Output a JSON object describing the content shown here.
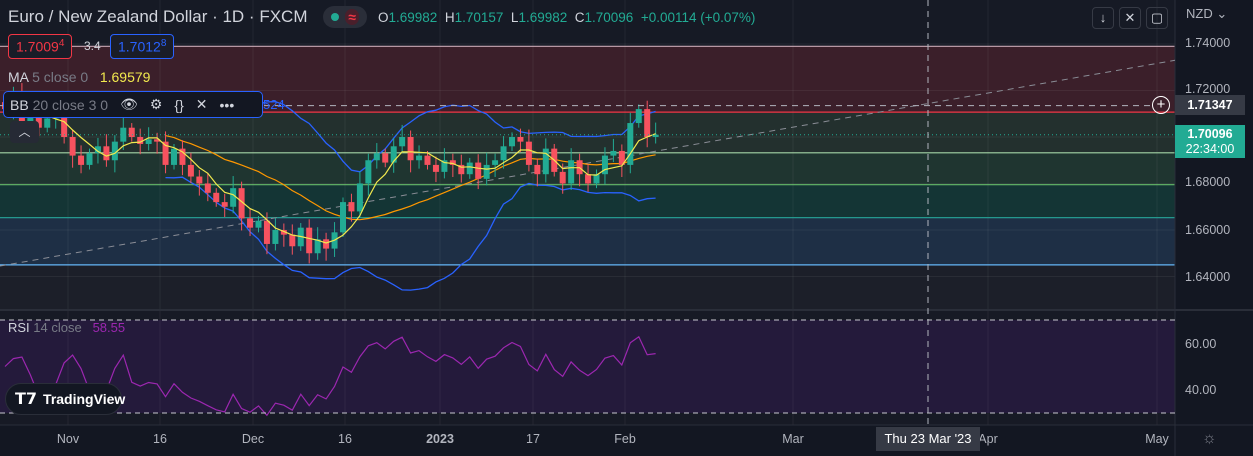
{
  "header": {
    "title": "Euro / New Zealand Dollar · 1D · FXCM",
    "o_label": "O",
    "o": "1.69982",
    "h_label": "H",
    "h": "1.70157",
    "l_label": "L",
    "l": "1.69982",
    "c_label": "C",
    "c": "1.70096",
    "change": "+0.00114 (+0.07%)"
  },
  "trade": {
    "sell_main": "1.7009",
    "sell_pip": "4",
    "spread": "3.4",
    "buy_main": "1.7012",
    "buy_pip": "8"
  },
  "indicators": {
    "ma": {
      "label": "MA",
      "params": "5 close 0",
      "value": "1.69579"
    },
    "bb": {
      "label": "BB",
      "params": "20 close 3 0",
      "value_partial": "524"
    },
    "rsi": {
      "label": "RSI",
      "params": "14 close",
      "value": "58.55"
    }
  },
  "price_axis": {
    "currency": "NZD",
    "ticks": [
      "1.74000",
      "1.72000",
      "1.68000",
      "1.66000",
      "1.64000"
    ],
    "crosshair": "1.71347",
    "last_price": "1.70096",
    "countdown": "22:34:00",
    "rsi_ticks": [
      "60.00",
      "40.00"
    ]
  },
  "time_axis": {
    "labels": [
      "Nov",
      "16",
      "Dec",
      "16",
      "2023",
      "17",
      "Feb",
      "Mar",
      "Apr",
      "May"
    ],
    "crosshair": "Thu 23 Mar '23"
  },
  "logo": "TradingView",
  "colors": {
    "up": "#22ab94",
    "down": "#f7525f",
    "ma": "#f2e94e",
    "basis": "#ff9800",
    "bands": "#2962ff",
    "rsi": "#9c27b0"
  },
  "chart_data": {
    "type": "candlestick",
    "title": "Euro / New Zealand Dollar · 1D · FXCM",
    "ylim": [
      1.625,
      1.745
    ],
    "x_labels": [
      "Nov",
      "16",
      "Dec",
      "16",
      "2023",
      "17",
      "Feb",
      "Mar",
      "Apr",
      "May"
    ],
    "closes": [
      1.712,
      1.718,
      1.706,
      1.71,
      1.704,
      1.708,
      1.711,
      1.7,
      1.692,
      1.688,
      1.693,
      1.696,
      1.69,
      1.698,
      1.704,
      1.7,
      1.697,
      1.699,
      1.698,
      1.688,
      1.695,
      1.688,
      1.683,
      1.68,
      1.676,
      1.672,
      1.67,
      1.678,
      1.665,
      1.661,
      1.664,
      1.654,
      1.66,
      1.658,
      1.653,
      1.661,
      1.65,
      1.656,
      1.652,
      1.659,
      1.672,
      1.668,
      1.68,
      1.69,
      1.693,
      1.689,
      1.696,
      1.7,
      1.69,
      1.692,
      1.688,
      1.685,
      1.69,
      1.688,
      1.684,
      1.689,
      1.682,
      1.688,
      1.69,
      1.696,
      1.7,
      1.698,
      1.688,
      1.684,
      1.695,
      1.685,
      1.68,
      1.69,
      1.684,
      1.68,
      1.684,
      1.692,
      1.694,
      1.688,
      1.706,
      1.712,
      1.7,
      1.701
    ],
    "levels": [
      1.739,
      1.7107,
      1.6932,
      1.6795,
      1.6653,
      1.645
    ],
    "trendline": [
      [
        0,
        1.6445
      ],
      [
        1,
        1.733
      ]
    ],
    "rsi_levels": [
      70,
      30
    ]
  }
}
